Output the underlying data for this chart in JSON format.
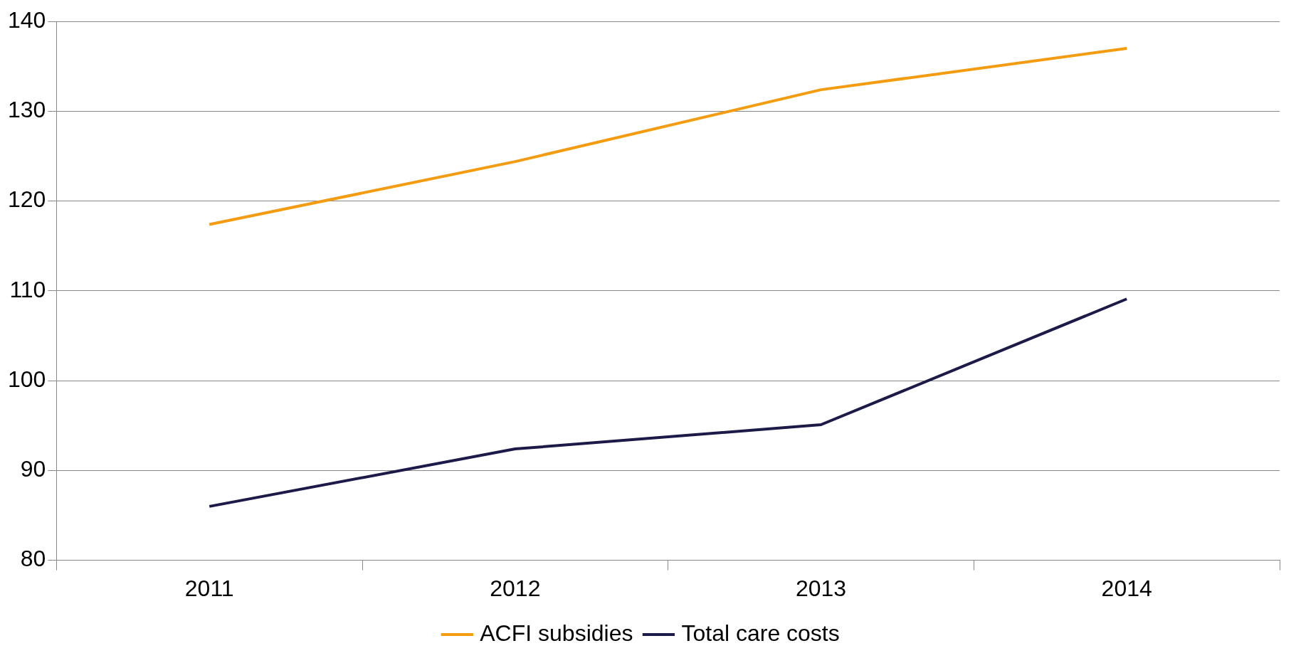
{
  "chart_data": {
    "type": "line",
    "categories": [
      "2011",
      "2012",
      "2013",
      "2014"
    ],
    "series": [
      {
        "name": "ACFI subsidies",
        "color": "#f39c12",
        "values": [
          117.4,
          124.4,
          132.4,
          137.0
        ]
      },
      {
        "name": "Total care costs",
        "color": "#1c1a48",
        "values": [
          86.0,
          92.4,
          95.1,
          109.1
        ]
      }
    ],
    "ylim": [
      80,
      140
    ],
    "yticks": [
      80,
      90,
      100,
      110,
      120,
      130,
      140
    ],
    "grid": "y",
    "legend": "bottom",
    "marker": "none",
    "line_style": "solid"
  }
}
